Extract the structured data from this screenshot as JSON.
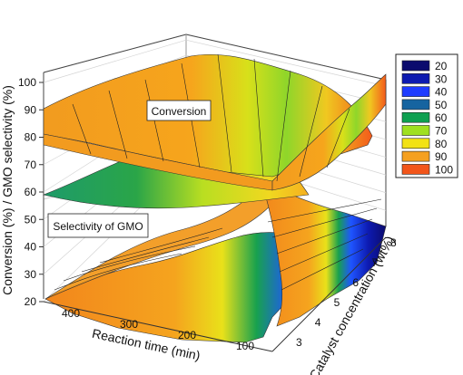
{
  "chart_data": {
    "type": "3d-surface",
    "zlabel": "Conversion (%) / GMO selectivity (%)",
    "xlabel": "Reaction time (min)",
    "ylabel": "Catalyst concentration (wt%)",
    "z_ticks": [
      "20",
      "30",
      "40",
      "50",
      "60",
      "70",
      "80",
      "90",
      "100"
    ],
    "zlim": [
      20,
      100
    ],
    "x_ticks": [
      "400",
      "300",
      "200",
      "100"
    ],
    "y_ticks": [
      "3",
      "4",
      "5",
      "6",
      "7",
      "8"
    ],
    "legend": {
      "placement": "right",
      "entries": [
        {
          "label": "20",
          "color": "#0b0b6e"
        },
        {
          "label": "30",
          "color": "#0d1ab0"
        },
        {
          "label": "40",
          "color": "#1f3cff"
        },
        {
          "label": "50",
          "color": "#1664a0"
        },
        {
          "label": "60",
          "color": "#0ea050"
        },
        {
          "label": "70",
          "color": "#9fe020"
        },
        {
          "label": "80",
          "color": "#f2e213"
        },
        {
          "label": "90",
          "color": "#f5a020"
        },
        {
          "label": "100",
          "color": "#f2551a"
        }
      ]
    },
    "annotations": [
      "Conversion",
      "Selectivity of GMO"
    ],
    "series": [
      {
        "name": "Conversion",
        "surface": [
          [
            86,
            88,
            92,
            94,
            96,
            97
          ],
          [
            82,
            86,
            89,
            92,
            95,
            97
          ],
          [
            70,
            76,
            82,
            86,
            90,
            94
          ],
          [
            58,
            66,
            74,
            80,
            86,
            98
          ]
        ]
      },
      {
        "name": "Selectivity of GMO",
        "surface": [
          [
            22,
            36,
            44,
            52,
            58,
            60
          ],
          [
            21,
            32,
            42,
            50,
            56,
            60
          ],
          [
            20,
            25,
            35,
            45,
            55,
            62
          ],
          [
            20,
            22,
            28,
            40,
            56,
            70
          ]
        ]
      }
    ]
  }
}
